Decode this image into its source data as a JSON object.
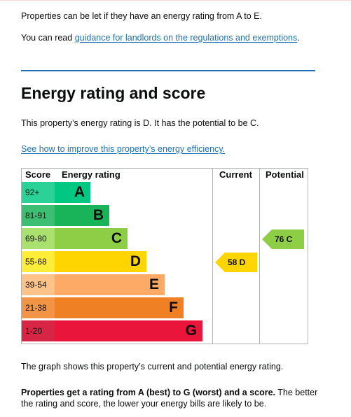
{
  "intro": {
    "rating_text": "Properties can be let if they have an energy rating from A to E.",
    "guidance_prefix": "You can read ",
    "guidance_link": "guidance for landlords on the regulations and exemptions",
    "guidance_suffix": "."
  },
  "section": {
    "title": "Energy rating and score",
    "rating_sentence": "This property’s energy rating is D. It has the potential to be C.",
    "improve_link": "See how to improve this property’s energy efficiency."
  },
  "chart": {
    "headers": {
      "score": "Score",
      "energy_rating": "Energy rating",
      "current": "Current",
      "potential": "Potential"
    },
    "bands": [
      {
        "score": "92+",
        "letter": "A",
        "color": "#00c781",
        "score_bg": "#00c781"
      },
      {
        "score": "81-91",
        "letter": "B",
        "color": "#19b459",
        "score_bg": "#19b459"
      },
      {
        "score": "69-80",
        "letter": "C",
        "color": "#8dce46",
        "score_bg": "#8dce46"
      },
      {
        "score": "55-68",
        "letter": "D",
        "color": "#ffd500",
        "score_bg": "#ffd500"
      },
      {
        "score": "39-54",
        "letter": "E",
        "color": "#fcaa65",
        "score_bg": "#fcaa65"
      },
      {
        "score": "21-38",
        "letter": "F",
        "color": "#ef8023",
        "score_bg": "#ef8023"
      },
      {
        "score": "1-20",
        "letter": "G",
        "color": "#e9153b",
        "score_bg": "#e9153b"
      }
    ],
    "current": {
      "value": "58",
      "letter": "D",
      "label": "58 D",
      "color": "#ffd500"
    },
    "potential": {
      "value": "76",
      "letter": "C",
      "label": "76 C",
      "color": "#8dce46"
    }
  },
  "footer": {
    "graph_text": "The graph shows this property’s current and potential energy rating.",
    "bold_text": "Properties get a rating from A (best) to G (worst) and a score.",
    "rest_text": " The better the rating and score, the lower your energy bills are likely to be."
  }
}
